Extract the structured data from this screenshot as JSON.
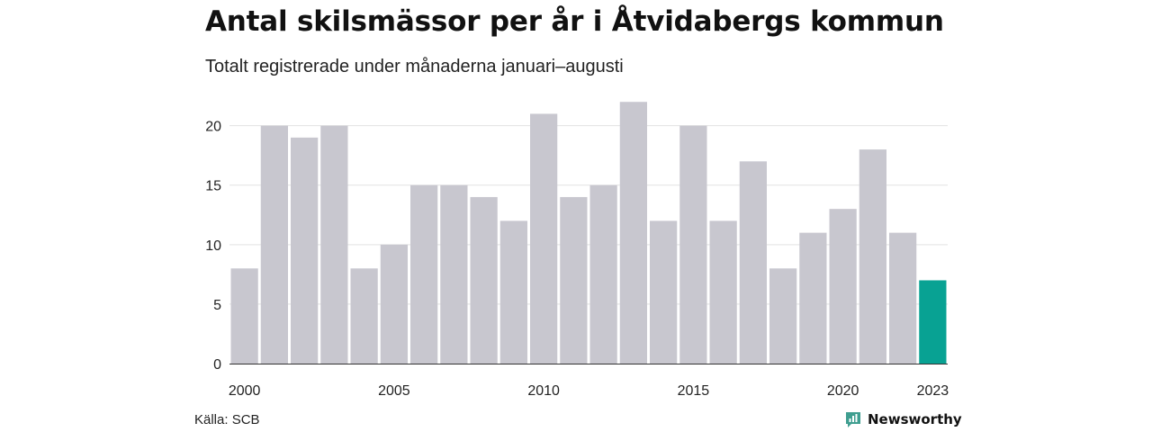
{
  "header": {
    "title": "Antal skilsmässor per år i Åtvidabergs kommun",
    "subtitle": "Totalt registrerade under månaderna januari–augusti"
  },
  "footer": {
    "source": "Källa: SCB",
    "brand": "Newsworthy",
    "brand_icon": "newsworthy-logo-icon"
  },
  "colors": {
    "bar": "#c8c7cf",
    "highlight": "#08a293",
    "grid": "#e2e2e2",
    "axis": "#333333",
    "brand": "#3f9e90"
  },
  "chart_data": {
    "type": "bar",
    "title": "Antal skilsmässor per år i Åtvidabergs kommun",
    "subtitle": "Totalt registrerade under månaderna januari–augusti",
    "xlabel": "",
    "ylabel": "",
    "categories": [
      "2000",
      "2001",
      "2002",
      "2003",
      "2004",
      "2005",
      "2006",
      "2007",
      "2008",
      "2009",
      "2010",
      "2011",
      "2012",
      "2013",
      "2014",
      "2015",
      "2016",
      "2017",
      "2018",
      "2019",
      "2020",
      "2021",
      "2022",
      "2023"
    ],
    "values": [
      8,
      20,
      19,
      20,
      8,
      10,
      15,
      15,
      14,
      12,
      21,
      14,
      15,
      22,
      12,
      20,
      12,
      17,
      8,
      11,
      13,
      18,
      11,
      7
    ],
    "highlight_category": "2023",
    "ylim": [
      0,
      23
    ],
    "yticks": [
      "0",
      "5",
      "10",
      "15",
      "20"
    ],
    "xticks": [
      "2000",
      "2005",
      "2010",
      "2015",
      "2020",
      "2023"
    ],
    "grid": true,
    "legend": "none"
  }
}
